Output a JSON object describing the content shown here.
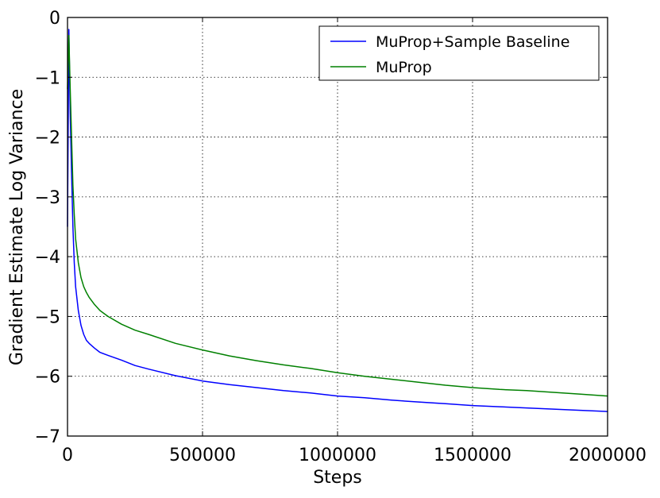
{
  "chart_data": {
    "type": "line",
    "title": "",
    "xlabel": "Steps",
    "ylabel": "Gradient Estimate Log Variance",
    "xlim": [
      0,
      2000000
    ],
    "ylim": [
      -7,
      0
    ],
    "grid": true,
    "legend_position": "top-right",
    "x_ticks": [
      0,
      500000,
      1000000,
      1500000,
      2000000
    ],
    "x_tick_labels": [
      "0",
      "500000",
      "1000000",
      "1500000",
      "2000000"
    ],
    "y_ticks": [
      0,
      -1,
      -2,
      -3,
      -4,
      -5,
      -6,
      -7
    ],
    "y_tick_labels": [
      "0",
      "−1",
      "−2",
      "−3",
      "−4",
      "−5",
      "−6",
      "−7"
    ],
    "series": [
      {
        "name": "MuProp+Sample Baseline",
        "color": "#0000ff",
        "x": [
          0,
          5000,
          10000,
          15000,
          20000,
          25000,
          30000,
          40000,
          50000,
          60000,
          70000,
          80000,
          100000,
          120000,
          150000,
          200000,
          250000,
          300000,
          400000,
          500000,
          600000,
          700000,
          800000,
          900000,
          1000000,
          1100000,
          1200000,
          1300000,
          1400000,
          1500000,
          1600000,
          1700000,
          1800000,
          1900000,
          2000000
        ],
        "y": [
          -3.5,
          -0.2,
          -1.6,
          -2.6,
          -3.5,
          -4.1,
          -4.5,
          -4.9,
          -5.15,
          -5.3,
          -5.4,
          -5.45,
          -5.53,
          -5.6,
          -5.65,
          -5.73,
          -5.82,
          -5.88,
          -5.99,
          -6.08,
          -6.14,
          -6.19,
          -6.24,
          -6.28,
          -6.33,
          -6.36,
          -6.4,
          -6.43,
          -6.46,
          -6.49,
          -6.51,
          -6.53,
          -6.55,
          -6.57,
          -6.59
        ]
      },
      {
        "name": "MuProp",
        "color": "#008000",
        "x": [
          0,
          5000,
          10000,
          15000,
          20000,
          25000,
          30000,
          40000,
          50000,
          60000,
          70000,
          80000,
          100000,
          120000,
          150000,
          200000,
          250000,
          300000,
          400000,
          500000,
          600000,
          700000,
          800000,
          900000,
          1000000,
          1100000,
          1200000,
          1300000,
          1400000,
          1500000,
          1600000,
          1700000,
          1800000,
          1900000,
          2000000
        ],
        "y": [
          -1.2,
          -0.3,
          -1.2,
          -2.0,
          -2.8,
          -3.3,
          -3.7,
          -4.1,
          -4.35,
          -4.5,
          -4.6,
          -4.68,
          -4.8,
          -4.9,
          -5.0,
          -5.13,
          -5.23,
          -5.3,
          -5.45,
          -5.56,
          -5.66,
          -5.74,
          -5.81,
          -5.87,
          -5.94,
          -6.0,
          -6.05,
          -6.1,
          -6.15,
          -6.19,
          -6.22,
          -6.24,
          -6.27,
          -6.3,
          -6.33
        ]
      }
    ]
  }
}
